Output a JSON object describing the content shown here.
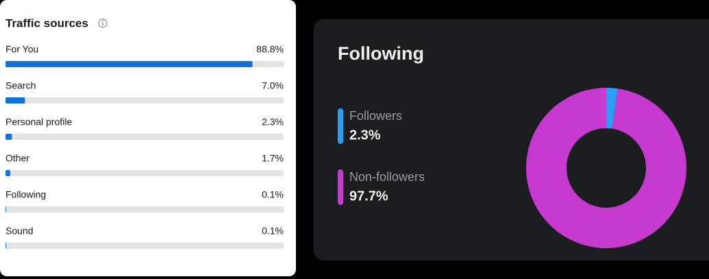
{
  "chart_data": [
    {
      "type": "hbar",
      "title": "Traffic sources",
      "categories": [
        "For You",
        "Search",
        "Personal profile",
        "Other",
        "Following",
        "Sound"
      ],
      "values": [
        88.8,
        7.0,
        2.3,
        1.7,
        0.1,
        0.1
      ],
      "value_labels": [
        "88.8%",
        "7.0%",
        "2.3%",
        "1.7%",
        "0.1%",
        "0.1%"
      ],
      "color": "#1273d8",
      "xlim": [
        0,
        100
      ]
    },
    {
      "type": "pie",
      "title": "Following",
      "categories": [
        "Followers",
        "Non-followers"
      ],
      "values": [
        2.3,
        97.7
      ],
      "value_labels": [
        "2.3%",
        "97.7%"
      ],
      "colors": [
        "#2a9df4",
        "#c73ad0"
      ]
    }
  ]
}
